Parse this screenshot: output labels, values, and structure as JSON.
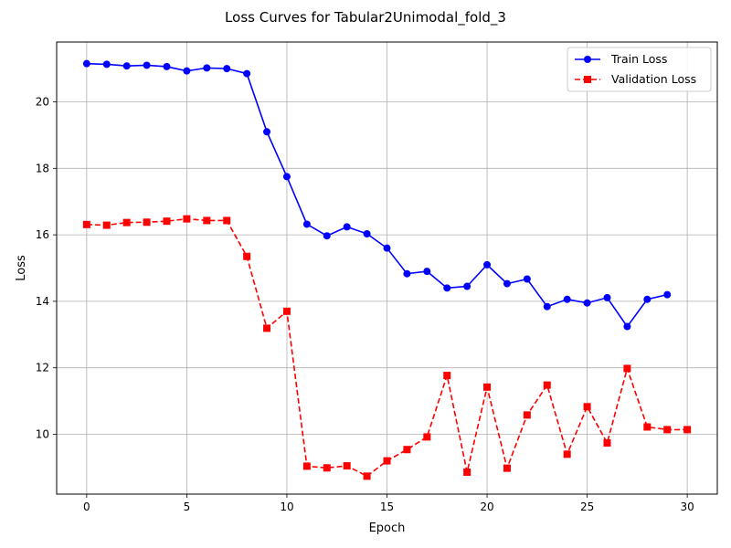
{
  "chart_data": {
    "type": "line",
    "title": "Loss Curves for Tabular2Unimodal_fold_3",
    "xlabel": "Epoch",
    "ylabel": "Loss",
    "xlim": [
      -1.5,
      31.5
    ],
    "ylim": [
      8.2,
      21.8
    ],
    "xticks": [
      0,
      5,
      10,
      15,
      20,
      25,
      30
    ],
    "yticks": [
      10,
      12,
      14,
      16,
      18,
      20
    ],
    "grid": true,
    "legend_position": "top-right",
    "series": [
      {
        "name": "Train Loss",
        "color": "#0000ff",
        "marker": "circle",
        "line_style": "solid",
        "x": [
          0,
          1,
          2,
          3,
          4,
          5,
          6,
          7,
          8,
          9,
          10,
          11,
          12,
          13,
          14,
          15,
          16,
          17,
          18,
          19,
          20,
          21,
          22,
          23,
          24,
          25,
          26,
          27,
          28,
          29
        ],
        "values": [
          21.15,
          21.13,
          21.08,
          21.1,
          21.06,
          20.93,
          21.02,
          21.0,
          20.85,
          19.1,
          17.75,
          16.32,
          15.97,
          16.24,
          16.03,
          15.6,
          14.83,
          14.9,
          14.4,
          14.45,
          15.1,
          14.53,
          14.67,
          13.84,
          14.06,
          13.95,
          14.11,
          13.24,
          14.06,
          14.2
        ]
      },
      {
        "name": "Validation Loss",
        "color": "#ff0000",
        "marker": "square",
        "line_style": "dashed",
        "x": [
          0,
          1,
          2,
          3,
          4,
          5,
          6,
          7,
          8,
          9,
          10,
          11,
          12,
          13,
          14,
          15,
          16,
          17,
          18,
          19,
          20,
          21,
          22,
          23,
          24,
          25,
          26,
          27,
          28,
          29,
          30
        ],
        "values": [
          16.31,
          16.29,
          16.37,
          16.38,
          16.41,
          16.48,
          16.43,
          16.43,
          15.35,
          13.19,
          13.7,
          9.04,
          8.99,
          9.05,
          8.74,
          9.2,
          9.54,
          9.92,
          11.77,
          8.86,
          11.42,
          8.98,
          10.58,
          11.48,
          9.4,
          10.83,
          9.74,
          11.98,
          10.22,
          10.14,
          10.14
        ]
      }
    ]
  }
}
